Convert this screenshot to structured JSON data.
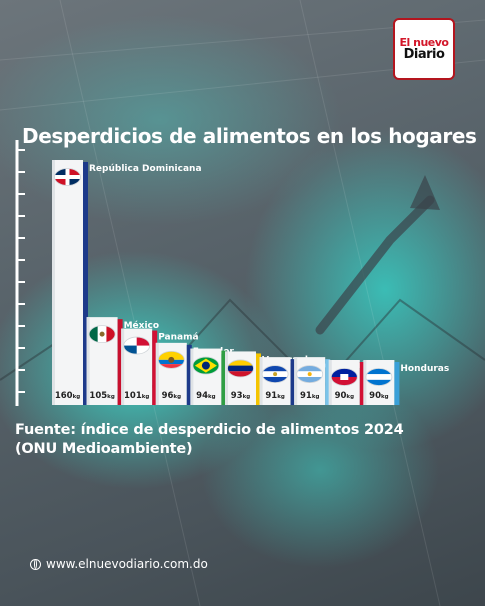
{
  "brand": {
    "line1": "El nuevo",
    "line2": "Diario"
  },
  "title": "Desperdicios de alimentos en los hogares",
  "source": "Fuente: índice de desperdicio de alimentos 2024 (ONU Medioambiente)",
  "website": "www.elnuevodiario.com.do",
  "chart_data": {
    "type": "bar",
    "title": "Desperdicios de alimentos en los hogares",
    "unit": "kg",
    "categories": [
      "República Dominicana",
      "México",
      "Panamá",
      "Ecuador",
      "Brasil",
      "Venezuela",
      "Salvador",
      "Argentina",
      "Haití",
      "Honduras"
    ],
    "values": [
      160,
      105,
      101,
      96,
      94,
      93,
      91,
      91,
      90,
      90
    ],
    "value_labels": [
      "160",
      "105",
      "101",
      "96",
      "94",
      "93",
      "91",
      "91",
      "90",
      "90"
    ],
    "flags": [
      "flag-dominican-republic",
      "flag-mexico",
      "flag-panama",
      "flag-ecuador",
      "flag-brazil",
      "flag-venezuela",
      "flag-el-salvador",
      "flag-argentina",
      "flag-haiti",
      "flag-honduras"
    ],
    "accent_colors": [
      "#1d3a8a",
      "#c8102e",
      "#d21034",
      "#1d3a8a",
      "#2f9e44",
      "#f4c400",
      "#1d3a8a",
      "#7cc4ea",
      "#d21034",
      "#3aa0d8"
    ],
    "grid": false,
    "legend": "none"
  }
}
